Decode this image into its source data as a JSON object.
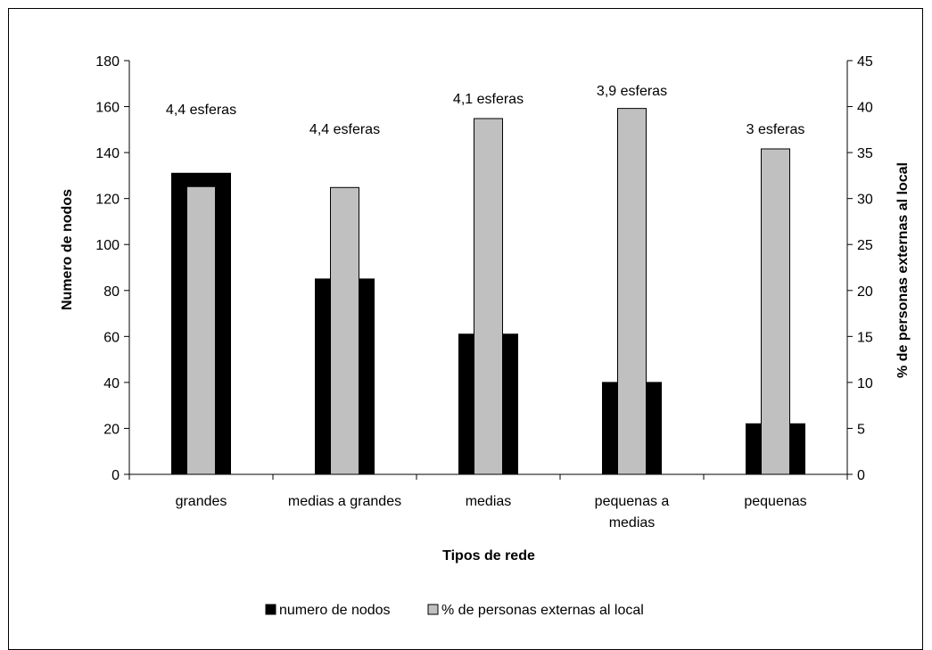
{
  "chart_data": {
    "type": "bar",
    "categories": [
      [
        "grandes"
      ],
      [
        "medias a grandes"
      ],
      [
        "medias"
      ],
      [
        "pequenas a",
        "medias"
      ],
      [
        "pequenas"
      ]
    ],
    "xlabel": "Tipos de rede",
    "ylabel": "Numero de nodos",
    "y2label": "%  de personas externas al local",
    "ylim": [
      0,
      180
    ],
    "y2lim": [
      0,
      45
    ],
    "yticks": [
      0,
      20,
      40,
      60,
      80,
      100,
      120,
      140,
      160,
      180
    ],
    "y2ticks": [
      0,
      5,
      10,
      15,
      20,
      25,
      30,
      35,
      40,
      45
    ],
    "series": [
      {
        "name": "numero de nodos",
        "axis": "left",
        "color": "#000000",
        "values": [
          131,
          85,
          61,
          40,
          22
        ]
      },
      {
        "name": "% de personas externas al local",
        "axis": "right",
        "color": "#c0c0c0",
        "values": [
          31.3,
          31.2,
          38.7,
          39.8,
          35.4
        ]
      }
    ],
    "annotations": [
      "4,4 esferas",
      "4,4 esferas",
      "4,1 esferas",
      "3,9 esferas",
      "3 esferas"
    ],
    "legend_position": "bottom",
    "grid": false
  }
}
